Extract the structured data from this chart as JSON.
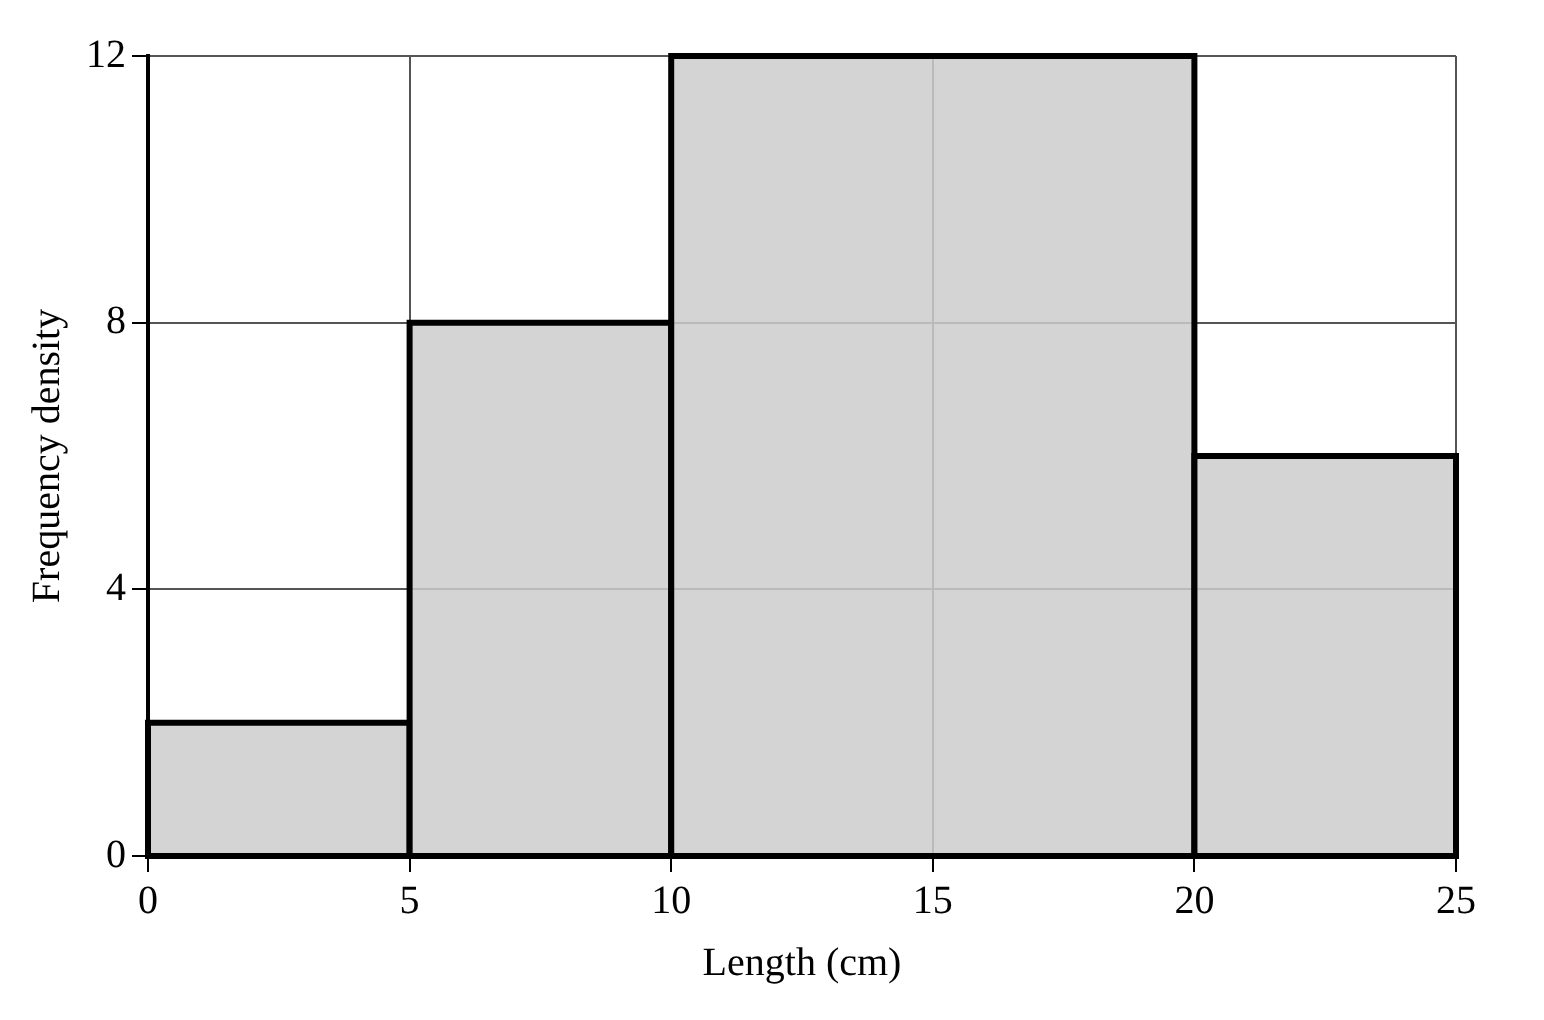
{
  "chart_data": {
    "type": "histogram",
    "xlabel": "Length (cm)",
    "ylabel": "Frequency density",
    "bins": [
      0,
      5,
      10,
      20,
      25
    ],
    "values": [
      2,
      8,
      12,
      6
    ],
    "color": "#cccccc",
    "xlim": [
      0,
      25
    ],
    "xticks": [
      0,
      5,
      10,
      15,
      20,
      25
    ],
    "ylim": [
      0,
      12
    ],
    "yticks": [
      0,
      4,
      8,
      12
    ],
    "grid": true,
    "legend": false
  }
}
